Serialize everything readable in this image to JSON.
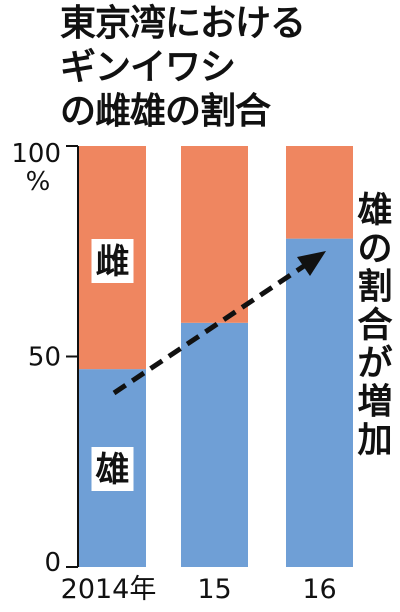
{
  "title_lines": [
    "東京湾における",
    "ギンイワシ",
    "の雌雄の割合"
  ],
  "chart_data": {
    "type": "bar",
    "stacked": true,
    "categories": [
      "2014年",
      "15",
      "16"
    ],
    "series": [
      {
        "name": "雄",
        "values": [
          47,
          58,
          78
        ]
      },
      {
        "name": "雌",
        "values": [
          53,
          42,
          22
        ]
      }
    ],
    "ylim": [
      0,
      100
    ],
    "yticks": [
      "0",
      "50",
      "100"
    ],
    "yunit": "%",
    "annotation": "雄の割合が増加",
    "colors": {
      "male": "#6f9fd6",
      "female": "#ef8660"
    }
  }
}
